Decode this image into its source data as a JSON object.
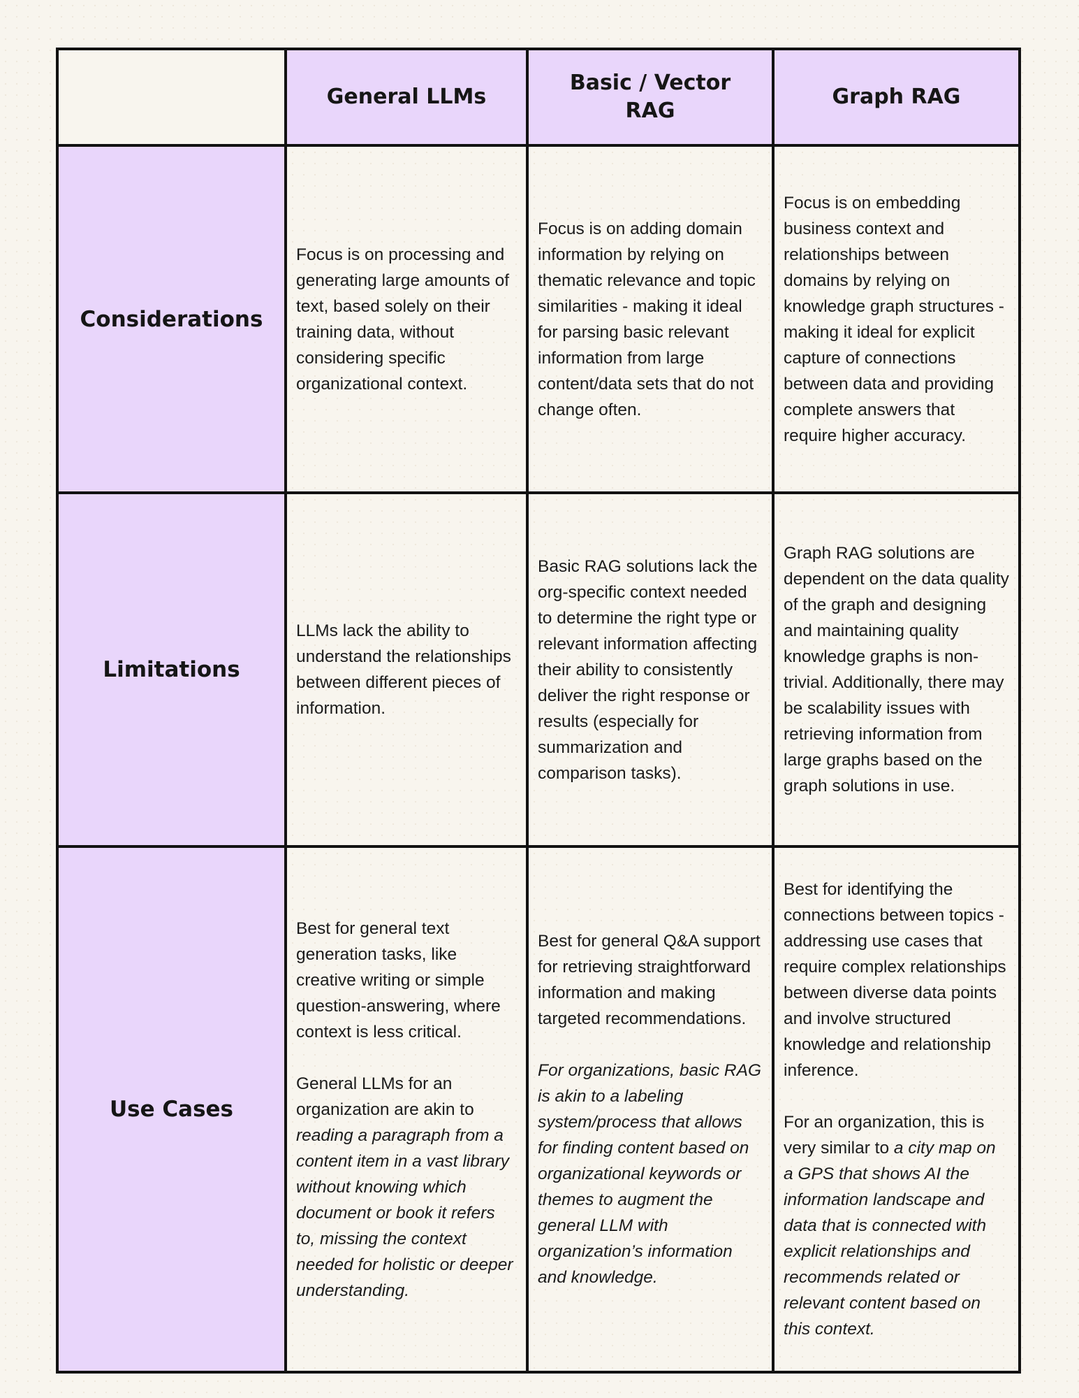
{
  "colors": {
    "page_background": "#f8f5ee",
    "header_background": "#e9d6fb",
    "cell_background": "#f8f5ee",
    "border": "#121212",
    "text": "#1b1b1b"
  },
  "table": {
    "column_headers": [
      "General LLMs",
      "Basic / Vector RAG",
      "Graph RAG"
    ],
    "rows": [
      {
        "label": "Considerations",
        "cells": [
          {
            "paragraphs": [
              [
                {
                  "text": "Focus is on processing and generating large amounts of text, based solely on their training data, without considering specific organizational context.",
                  "italic": false
                }
              ]
            ]
          },
          {
            "paragraphs": [
              [
                {
                  "text": "Focus is on adding domain information by relying on thematic relevance and topic similarities - making it ideal for parsing basic relevant information from large content/data sets that do not change often.",
                  "italic": false
                }
              ]
            ]
          },
          {
            "paragraphs": [
              [
                {
                  "text": "Focus is on embedding business context and relationships between domains by relying on knowledge graph structures - making it ideal for explicit capture of connections between data and providing complete answers that require higher accuracy.",
                  "italic": false
                }
              ]
            ]
          }
        ]
      },
      {
        "label": "Limitations",
        "cells": [
          {
            "paragraphs": [
              [
                {
                  "text": "LLMs lack the ability to understand the relationships between different pieces of information.",
                  "italic": false
                }
              ]
            ]
          },
          {
            "paragraphs": [
              [
                {
                  "text": "Basic RAG solutions lack the org-specific context needed to determine the right type or relevant information affecting their ability to consistently deliver the right response or results (especially for summarization and comparison tasks).",
                  "italic": false
                }
              ]
            ]
          },
          {
            "paragraphs": [
              [
                {
                  "text": "Graph RAG solutions are dependent on the data quality of the graph and designing and maintaining quality knowledge graphs is non-trivial. Additionally, there may be scalability issues with retrieving information from large graphs based on the graph solutions in use.",
                  "italic": false
                }
              ]
            ]
          }
        ]
      },
      {
        "label": "Use Cases",
        "cells": [
          {
            "paragraphs": [
              [
                {
                  "text": "Best for general text generation tasks, like creative writing or simple question-answering, where context is less critical.",
                  "italic": false
                }
              ],
              [
                {
                  "text": "General LLMs for an organization are akin to ",
                  "italic": false
                },
                {
                  "text": "reading a paragraph from a content item in a vast library without knowing which document or book it refers to, missing the context needed for holistic or deeper understanding.",
                  "italic": true
                }
              ]
            ]
          },
          {
            "paragraphs": [
              [
                {
                  "text": "Best for general Q&A support for retrieving straightforward information and making targeted recommendations.",
                  "italic": false
                }
              ],
              [
                {
                  "text": "For organizations, basic RAG is akin to a labeling system/process that allows for finding content based on organizational keywords or themes to augment the general LLM with organization’s information and knowledge.",
                  "italic": true
                }
              ]
            ]
          },
          {
            "paragraphs": [
              [
                {
                  "text": "Best for identifying the connections between topics - addressing use cases that require complex relationships between diverse data points and involve structured knowledge and relationship inference.",
                  "italic": false
                }
              ],
              [
                {
                  "text": "For an organization, this is very similar to ",
                  "italic": false
                },
                {
                  "text": "a city map on a GPS that shows AI the information landscape and data that is connected with explicit relationships and recommends related or relevant content based on this context.",
                  "italic": true
                }
              ]
            ]
          }
        ]
      }
    ]
  }
}
